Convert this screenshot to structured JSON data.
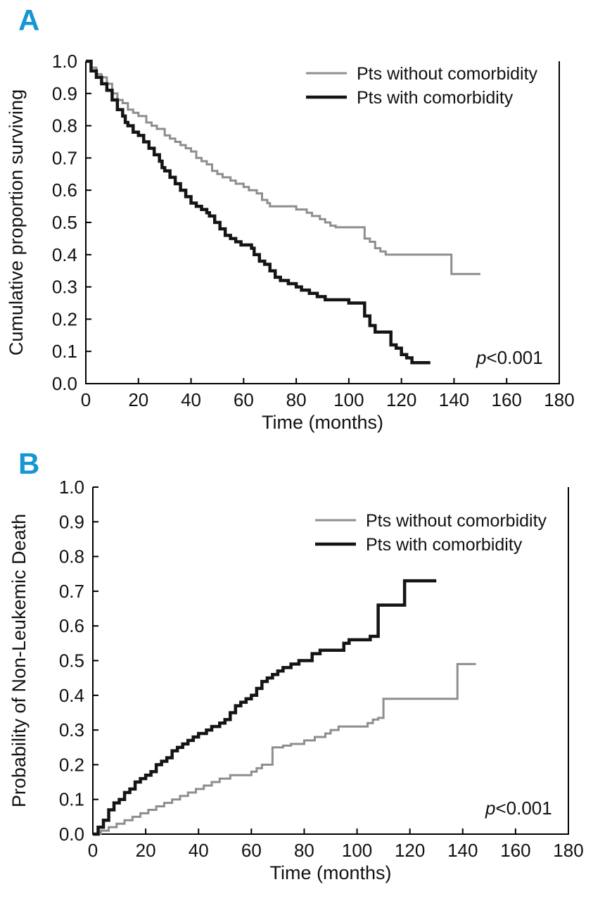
{
  "figure": {
    "accent_color": "#1597d2",
    "background": "#ffffff"
  },
  "panels": [
    {
      "label": "A"
    },
    {
      "label": "B"
    }
  ],
  "chart_data": [
    {
      "type": "line",
      "subtype": "kaplan-meier-step",
      "panel": "A",
      "xlabel": "Time (months)",
      "ylabel": "Cumulative proportion surviving",
      "xlim": [
        0,
        180
      ],
      "ylim": [
        0.0,
        1.0
      ],
      "xticks": [
        0,
        20,
        40,
        60,
        80,
        100,
        120,
        140,
        160,
        180
      ],
      "yticks": [
        0.0,
        0.1,
        0.2,
        0.3,
        0.4,
        0.5,
        0.6,
        0.7,
        0.8,
        0.9,
        1.0
      ],
      "grid": false,
      "legend_position": "top-right",
      "annotation": "p<0.001",
      "series": [
        {
          "name": "Pts without comorbidity",
          "color": "#8e8e8e",
          "width": 3,
          "points": [
            [
              0,
              1.0
            ],
            [
              2,
              0.98
            ],
            [
              4,
              0.96
            ],
            [
              6,
              0.95
            ],
            [
              8,
              0.93
            ],
            [
              10,
              0.9
            ],
            [
              12,
              0.88
            ],
            [
              14,
              0.87
            ],
            [
              16,
              0.85
            ],
            [
              18,
              0.84
            ],
            [
              20,
              0.83
            ],
            [
              23,
              0.81
            ],
            [
              25,
              0.8
            ],
            [
              27,
              0.79
            ],
            [
              30,
              0.77
            ],
            [
              32,
              0.76
            ],
            [
              34,
              0.75
            ],
            [
              36,
              0.74
            ],
            [
              38,
              0.73
            ],
            [
              40,
              0.72
            ],
            [
              42,
              0.7
            ],
            [
              44,
              0.69
            ],
            [
              46,
              0.68
            ],
            [
              48,
              0.66
            ],
            [
              50,
              0.65
            ],
            [
              52,
              0.64
            ],
            [
              55,
              0.63
            ],
            [
              57,
              0.62
            ],
            [
              60,
              0.61
            ],
            [
              62,
              0.6
            ],
            [
              65,
              0.59
            ],
            [
              67,
              0.57
            ],
            [
              69,
              0.56
            ],
            [
              70,
              0.55
            ],
            [
              78,
              0.55
            ],
            [
              80,
              0.54
            ],
            [
              84,
              0.53
            ],
            [
              86,
              0.52
            ],
            [
              89,
              0.51
            ],
            [
              91,
              0.5
            ],
            [
              93,
              0.49
            ],
            [
              95,
              0.485
            ],
            [
              104,
              0.485
            ],
            [
              106,
              0.45
            ],
            [
              108,
              0.44
            ],
            [
              110,
              0.42
            ],
            [
              112,
              0.41
            ],
            [
              114,
              0.4
            ],
            [
              138,
              0.4
            ],
            [
              139,
              0.34
            ],
            [
              150,
              0.34
            ]
          ]
        },
        {
          "name": "Pts with comorbidity",
          "color": "#141414",
          "width": 4.5,
          "points": [
            [
              0,
              1.0
            ],
            [
              2,
              0.97
            ],
            [
              4,
              0.95
            ],
            [
              6,
              0.93
            ],
            [
              8,
              0.91
            ],
            [
              10,
              0.88
            ],
            [
              12,
              0.85
            ],
            [
              14,
              0.83
            ],
            [
              15,
              0.81
            ],
            [
              16,
              0.8
            ],
            [
              18,
              0.78
            ],
            [
              20,
              0.77
            ],
            [
              22,
              0.75
            ],
            [
              24,
              0.73
            ],
            [
              26,
              0.71
            ],
            [
              28,
              0.69
            ],
            [
              29,
              0.67
            ],
            [
              30,
              0.66
            ],
            [
              32,
              0.64
            ],
            [
              34,
              0.62
            ],
            [
              36,
              0.6
            ],
            [
              38,
              0.58
            ],
            [
              40,
              0.56
            ],
            [
              42,
              0.55
            ],
            [
              44,
              0.54
            ],
            [
              46,
              0.53
            ],
            [
              47,
              0.52
            ],
            [
              49,
              0.5
            ],
            [
              51,
              0.48
            ],
            [
              53,
              0.46
            ],
            [
              55,
              0.45
            ],
            [
              57,
              0.44
            ],
            [
              59,
              0.43
            ],
            [
              63,
              0.42
            ],
            [
              64,
              0.4
            ],
            [
              66,
              0.38
            ],
            [
              68,
              0.37
            ],
            [
              70,
              0.35
            ],
            [
              72,
              0.33
            ],
            [
              74,
              0.32
            ],
            [
              77,
              0.31
            ],
            [
              80,
              0.3
            ],
            [
              82,
              0.29
            ],
            [
              85,
              0.28
            ],
            [
              88,
              0.27
            ],
            [
              91,
              0.26
            ],
            [
              99,
              0.26
            ],
            [
              100,
              0.25
            ],
            [
              105,
              0.25
            ],
            [
              106,
              0.21
            ],
            [
              108,
              0.18
            ],
            [
              110,
              0.16
            ],
            [
              115,
              0.16
            ],
            [
              116,
              0.12
            ],
            [
              118,
              0.11
            ],
            [
              120,
              0.09
            ],
            [
              122,
              0.08
            ],
            [
              124,
              0.065
            ],
            [
              131,
              0.065
            ]
          ]
        }
      ]
    },
    {
      "type": "line",
      "subtype": "cumulative-incidence-step",
      "panel": "B",
      "xlabel": "Time (months)",
      "ylabel": "Probability of Non-Leukemic Death",
      "xlim": [
        0,
        180
      ],
      "ylim": [
        0.0,
        1.0
      ],
      "xticks": [
        0,
        20,
        40,
        60,
        80,
        100,
        120,
        140,
        160,
        180
      ],
      "yticks": [
        0.0,
        0.1,
        0.2,
        0.3,
        0.4,
        0.5,
        0.6,
        0.7,
        0.8,
        0.9,
        1.0
      ],
      "grid": false,
      "legend_position": "top-right",
      "annotation": "p<0.001",
      "series": [
        {
          "name": "Pts without comorbidity",
          "color": "#8e8e8e",
          "width": 3,
          "points": [
            [
              0,
              0.0
            ],
            [
              3,
              0.01
            ],
            [
              6,
              0.02
            ],
            [
              9,
              0.03
            ],
            [
              12,
              0.04
            ],
            [
              15,
              0.05
            ],
            [
              18,
              0.06
            ],
            [
              21,
              0.07
            ],
            [
              24,
              0.08
            ],
            [
              27,
              0.09
            ],
            [
              30,
              0.1
            ],
            [
              33,
              0.11
            ],
            [
              36,
              0.12
            ],
            [
              39,
              0.13
            ],
            [
              42,
              0.14
            ],
            [
              45,
              0.15
            ],
            [
              48,
              0.16
            ],
            [
              52,
              0.17
            ],
            [
              58,
              0.17
            ],
            [
              60,
              0.18
            ],
            [
              62,
              0.19
            ],
            [
              64,
              0.2
            ],
            [
              68,
              0.25
            ],
            [
              72,
              0.255
            ],
            [
              75,
              0.26
            ],
            [
              80,
              0.27
            ],
            [
              84,
              0.28
            ],
            [
              88,
              0.29
            ],
            [
              90,
              0.3
            ],
            [
              93,
              0.31
            ],
            [
              102,
              0.31
            ],
            [
              104,
              0.32
            ],
            [
              106,
              0.33
            ],
            [
              108,
              0.335
            ],
            [
              110,
              0.39
            ],
            [
              136,
              0.39
            ],
            [
              138,
              0.49
            ],
            [
              145,
              0.49
            ]
          ]
        },
        {
          "name": "Pts with comorbidity",
          "color": "#141414",
          "width": 4.5,
          "points": [
            [
              0,
              0.0
            ],
            [
              2,
              0.02
            ],
            [
              4,
              0.04
            ],
            [
              6,
              0.07
            ],
            [
              8,
              0.09
            ],
            [
              10,
              0.1
            ],
            [
              12,
              0.12
            ],
            [
              14,
              0.13
            ],
            [
              16,
              0.15
            ],
            [
              18,
              0.16
            ],
            [
              20,
              0.17
            ],
            [
              22,
              0.18
            ],
            [
              24,
              0.2
            ],
            [
              26,
              0.21
            ],
            [
              28,
              0.22
            ],
            [
              30,
              0.24
            ],
            [
              32,
              0.25
            ],
            [
              34,
              0.26
            ],
            [
              36,
              0.27
            ],
            [
              38,
              0.28
            ],
            [
              40,
              0.29
            ],
            [
              43,
              0.3
            ],
            [
              45,
              0.31
            ],
            [
              48,
              0.32
            ],
            [
              50,
              0.33
            ],
            [
              52,
              0.35
            ],
            [
              54,
              0.37
            ],
            [
              56,
              0.38
            ],
            [
              58,
              0.39
            ],
            [
              60,
              0.4
            ],
            [
              62,
              0.42
            ],
            [
              64,
              0.44
            ],
            [
              66,
              0.45
            ],
            [
              68,
              0.46
            ],
            [
              70,
              0.47
            ],
            [
              72,
              0.48
            ],
            [
              75,
              0.49
            ],
            [
              78,
              0.5
            ],
            [
              83,
              0.52
            ],
            [
              86,
              0.53
            ],
            [
              94,
              0.53
            ],
            [
              95,
              0.55
            ],
            [
              97,
              0.56
            ],
            [
              104,
              0.56
            ],
            [
              105,
              0.57
            ],
            [
              108,
              0.66
            ],
            [
              117,
              0.66
            ],
            [
              118,
              0.73
            ],
            [
              130,
              0.73
            ]
          ]
        }
      ]
    }
  ]
}
